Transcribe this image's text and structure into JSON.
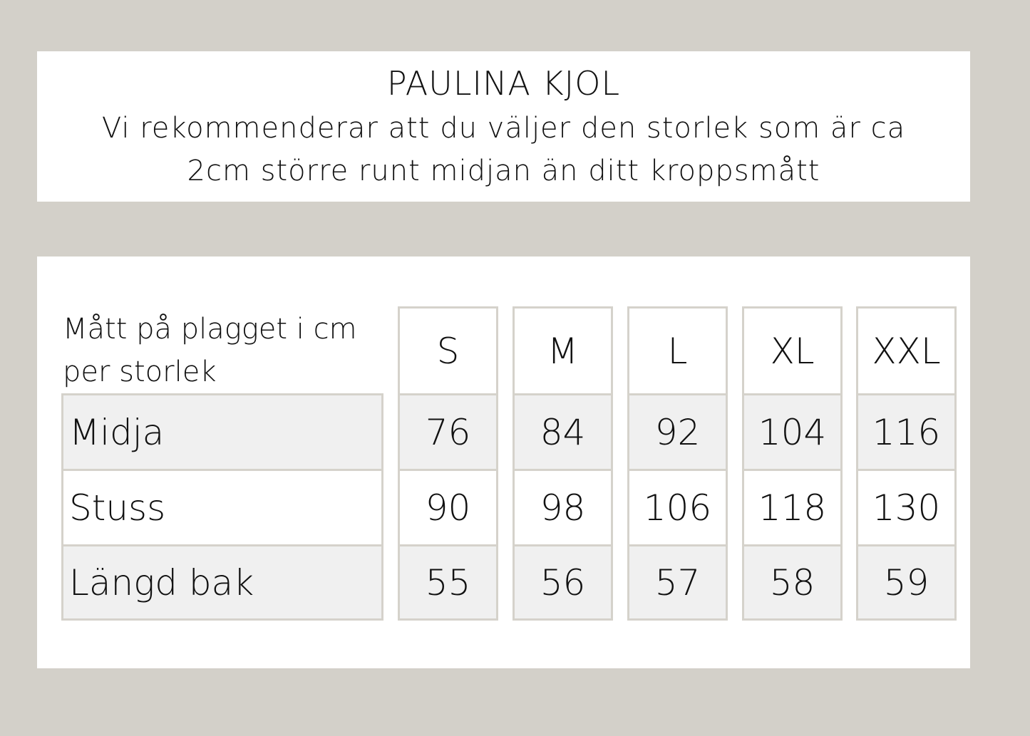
{
  "header": {
    "title": "PAULINA KJOL",
    "line1": "Vi rekommenderar att du väljer den storlek som är ca",
    "line2": "2cm större runt midjan än ditt kroppsmått"
  },
  "table": {
    "corner_label": "Mått på plagget i cm per storlek",
    "sizes": [
      "S",
      "M",
      "L",
      "XL",
      "XXL"
    ],
    "rows": [
      {
        "label": "Midja",
        "values": [
          "76",
          "84",
          "92",
          "104",
          "116"
        ]
      },
      {
        "label": "Stuss",
        "values": [
          "90",
          "98",
          "106",
          "118",
          "130"
        ]
      },
      {
        "label": "Längd bak",
        "values": [
          "55",
          "56",
          "57",
          "58",
          "59"
        ]
      }
    ]
  },
  "colors": {
    "background": "#d3d0c9",
    "border": "#d5d2cb",
    "row_shade": "#f0f0f0"
  }
}
